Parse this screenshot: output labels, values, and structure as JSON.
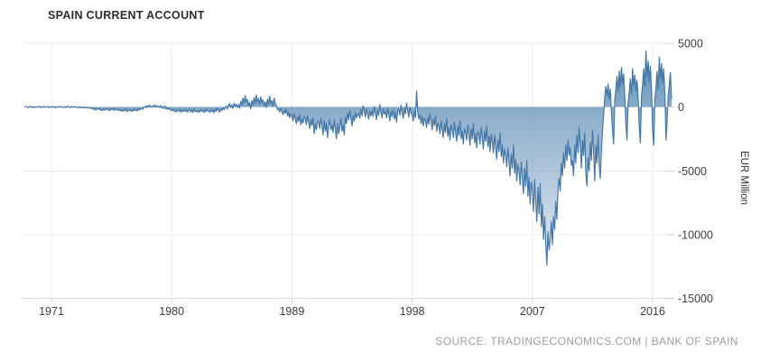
{
  "header": {
    "title": "SPAIN CURRENT ACCOUNT"
  },
  "footer": {
    "source": "SOURCE: TRADINGECONOMICS.COM | BANK OF SPAIN"
  },
  "chart_data": {
    "type": "area",
    "title": "SPAIN CURRENT ACCOUNT",
    "ylabel": "EUR Million",
    "xlabel": "",
    "x_tick_labels": [
      "1971",
      "1980",
      "1989",
      "1998",
      "2007",
      "2016"
    ],
    "y_tick_labels": [
      "5000",
      "0",
      "-5000",
      "-10000",
      "-15000"
    ],
    "y_tick_values": [
      5000,
      0,
      -5000,
      -10000,
      -15000
    ],
    "ylim": [
      -15000,
      5000
    ],
    "xlim_years": [
      1968.9,
      2017.6
    ],
    "grid": true,
    "legend": "none",
    "colors": {
      "line": "#4577a6",
      "fill": "#4e81ad",
      "grid": "#ececec",
      "axis_text": "#3c3c3c",
      "source_text": "#9e9e9e",
      "background": "#ffffff"
    },
    "series": {
      "name": "Spain Current Account",
      "unit": "EUR Million",
      "frequency": "monthly",
      "start_year": 1969,
      "start_month": 1,
      "values_by_year": [
        [
          -30,
          40,
          10,
          -60,
          20,
          50,
          -20,
          30,
          -40,
          10,
          -30,
          20
        ],
        [
          30,
          -20,
          40,
          -50,
          10,
          60,
          -30,
          20,
          -10,
          40,
          -60,
          10
        ],
        [
          -20,
          50,
          -40,
          30,
          -70,
          20,
          40,
          -30,
          60,
          -20,
          10,
          -50
        ],
        [
          20,
          -40,
          60,
          -10,
          30,
          -60,
          40,
          -20,
          50,
          -30,
          20,
          -40
        ],
        [
          -60,
          30,
          -80,
          10,
          -50,
          -90,
          20,
          -60,
          -30,
          -100,
          -40,
          -80
        ],
        [
          -150,
          -80,
          -200,
          -120,
          -250,
          -150,
          -90,
          -220,
          -160,
          -280,
          -180,
          -240
        ],
        [
          -180,
          -250,
          -120,
          -200,
          -300,
          -150,
          -220,
          -100,
          -260,
          -170,
          -230,
          -140
        ],
        [
          -280,
          -180,
          -320,
          -200,
          -350,
          -220,
          -300,
          -150,
          -380,
          -250,
          -200,
          -320
        ],
        [
          -250,
          -350,
          -150,
          -280,
          -200,
          -320,
          -120,
          -240,
          -160,
          -90,
          -180,
          -60
        ],
        [
          50,
          -80,
          120,
          -20,
          150,
          60,
          -40,
          100,
          20,
          160,
          -30,
          90
        ],
        [
          60,
          -50,
          130,
          -90,
          40,
          -120,
          80,
          -160,
          -60,
          -200,
          -100,
          -240
        ],
        [
          -280,
          -160,
          -350,
          -220,
          -400,
          -260,
          -320,
          -180,
          -420,
          -240,
          -380,
          -200
        ],
        [
          -350,
          -200,
          -420,
          -260,
          -180,
          -390,
          -240,
          -430,
          -160,
          -360,
          -280,
          -400
        ],
        [
          -300,
          -420,
          -180,
          -350,
          -250,
          -440,
          -200,
          -380,
          -150,
          -320,
          -420,
          -250
        ],
        [
          -380,
          -220,
          -450,
          -180,
          -350,
          -120,
          -280,
          -400,
          -160,
          -300,
          -80,
          -220
        ],
        [
          -100,
          80,
          -160,
          120,
          260,
          -60,
          180,
          -120,
          300,
          60,
          220,
          -40
        ],
        [
          200,
          -100,
          450,
          150,
          700,
          300,
          900,
          400,
          600,
          100,
          350,
          -150
        ],
        [
          500,
          150,
          750,
          250,
          950,
          400,
          650,
          200,
          800,
          350,
          550,
          100
        ],
        [
          400,
          -50,
          600,
          200,
          850,
          300,
          500,
          50,
          700,
          250,
          100,
          -200
        ],
        [
          -150,
          -400,
          -100,
          -350,
          -600,
          -250,
          -500,
          -150,
          -700,
          -400,
          -850,
          -550
        ],
        [
          -700,
          -1100,
          -500,
          -900,
          -1300,
          -800,
          -1150,
          -600,
          -1400,
          -950,
          -1250,
          -750
        ],
        [
          -900,
          -1400,
          -700,
          -1200,
          -1700,
          -1000,
          -1450,
          -850,
          -2100,
          -1300,
          -1800,
          -1100
        ],
        [
          -1200,
          -1700,
          -900,
          -1500,
          -2200,
          -1100,
          -1900,
          -1300,
          -2400,
          -1500,
          -1000,
          -1800
        ],
        [
          -1400,
          -2000,
          -1000,
          -1750,
          -2500,
          -1300,
          -2100,
          -1600,
          -900,
          -1900,
          -1450,
          -2200
        ],
        [
          -800,
          -1300,
          -500,
          -1000,
          -300,
          -900,
          -1500,
          -700,
          -1100,
          -400,
          -850,
          -600
        ],
        [
          -500,
          -900,
          -200,
          -700,
          100,
          -400,
          -800,
          -150,
          -600,
          -950,
          -350,
          -700
        ],
        [
          -300,
          -750,
          50,
          -500,
          -1000,
          -250,
          -650,
          200,
          -450,
          -850,
          -150,
          -550
        ],
        [
          -400,
          -850,
          -100,
          -600,
          -1100,
          -350,
          -750,
          -200,
          -950,
          -450,
          -1200,
          -300
        ],
        [
          -200,
          -650,
          150,
          -450,
          -900,
          -100,
          -550,
          300,
          -350,
          -800,
          -50,
          -500
        ],
        [
          -600,
          -1100,
          -300,
          -850,
          1250,
          -400,
          -950,
          -600,
          -1300,
          -750,
          -1500,
          -900
        ],
        [
          -1100,
          -1600,
          -800,
          -1350,
          -500,
          -1200,
          -1800,
          -950,
          -1450,
          -700,
          -1900,
          -1250
        ],
        [
          -1500,
          -2100,
          -1100,
          -1800,
          -2400,
          -1300,
          -2000,
          -900,
          -2300,
          -1600,
          -2600,
          -1400
        ],
        [
          -1800,
          -2400,
          -1200,
          -2000,
          -2700,
          -1500,
          -2250,
          -1100,
          -2500,
          -1900,
          -2900,
          -1700
        ],
        [
          -2000,
          -2600,
          -1400,
          -2200,
          -3000,
          -1700,
          -2500,
          -1300,
          -2800,
          -2100,
          -3200,
          -1900
        ],
        [
          -2200,
          -2900,
          -1600,
          -2500,
          -3300,
          -1900,
          -2700,
          -1500,
          -3100,
          -2300,
          -3500,
          -2100
        ],
        [
          -2800,
          -3600,
          -2200,
          -3200,
          -4100,
          -2600,
          -3500,
          -2000,
          -3900,
          -3000,
          -4400,
          -3300
        ],
        [
          -3800,
          -4700,
          -3200,
          -4300,
          -5400,
          -3700,
          -4800,
          -3000,
          -5200,
          -4100,
          -5800,
          -4500
        ],
        [
          -5000,
          -6100,
          -4300,
          -5600,
          -6800,
          -4800,
          -6200,
          -4200,
          -7000,
          -5500,
          -7600,
          -5900
        ],
        [
          -6500,
          -8200,
          -5700,
          -7400,
          -9000,
          -6300,
          -8400,
          -6000,
          -9400,
          -7600,
          -10400,
          -8600
        ],
        [
          -10600,
          -12400,
          -9800,
          -11200,
          -10400,
          -9000,
          -10800,
          -8600,
          -9600,
          -7400,
          -8800,
          -6400
        ],
        [
          -5600,
          -6600,
          -4400,
          -5400,
          -3600,
          -4800,
          -3000,
          -4200,
          -2600,
          -3800,
          -3200,
          -4600
        ],
        [
          -4200,
          -5400,
          -3000,
          -4400,
          -2200,
          -3600,
          -1600,
          -3000,
          -4800,
          -2600,
          -3800,
          -2000
        ],
        [
          -5200,
          -6200,
          -4000,
          -5000,
          -2800,
          -4200,
          -1800,
          -3400,
          -5800,
          -3000,
          -4400,
          -2200
        ],
        [
          -4600,
          -5600,
          -3400,
          -1800,
          -600,
          800,
          1600,
          900,
          1800,
          600,
          1400,
          -400
        ],
        [
          -1800,
          -2900,
          600,
          1400,
          2400,
          1200,
          2800,
          1600,
          3100,
          1800,
          2600,
          800
        ],
        [
          -1400,
          -2600,
          400,
          1200,
          2200,
          1000,
          3000,
          1700,
          2500,
          1300,
          2100,
          600
        ],
        [
          -1600,
          -2800,
          800,
          1800,
          3000,
          1600,
          4400,
          2400,
          3600,
          2000,
          3200,
          1200
        ],
        [
          -1800,
          -3000,
          600,
          1500,
          2800,
          1400,
          3900,
          2200,
          3400,
          1900,
          3000,
          1000
        ],
        [
          -2600,
          -1200,
          900,
          1800,
          2700,
          600
        ]
      ]
    }
  }
}
